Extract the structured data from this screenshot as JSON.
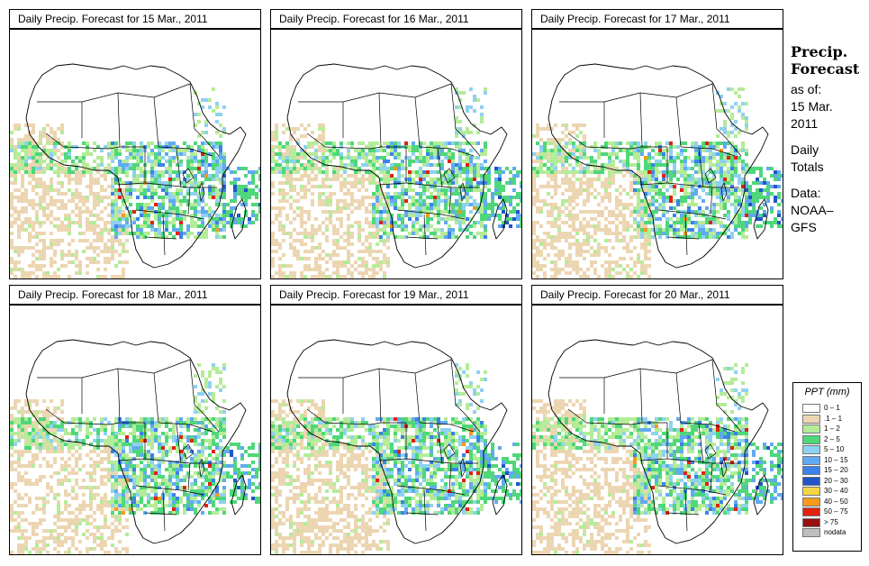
{
  "panels": [
    {
      "title": "Daily Precip. Forecast for  15 Mar., 2011",
      "seed": 11
    },
    {
      "title": "Daily Precip. Forecast for  16 Mar., 2011",
      "seed": 22
    },
    {
      "title": "Daily Precip. Forecast for  17 Mar., 2011",
      "seed": 33
    },
    {
      "title": "Daily Precip. Forecast for  18 Mar., 2011",
      "seed": 44
    },
    {
      "title": "Daily Precip. Forecast for  19 Mar., 2011",
      "seed": 55
    },
    {
      "title": "Daily Precip. Forecast for  20 Mar., 2011",
      "seed": 66
    }
  ],
  "info": {
    "heading_line1": "Precip.",
    "heading_line2": "Forecast",
    "asof_label": "as of:",
    "date_line1": "15 Mar.",
    "date_line2": "2011",
    "daily_line1": "Daily",
    "daily_line2": "Totals",
    "data_line1": "Data:",
    "data_line2": "NOAA–",
    "data_line3": "GFS"
  },
  "legend": {
    "title": "PPT (mm)",
    "items": [
      {
        "label": "0 – 1",
        "color": "#ffffff"
      },
      {
        "label": ".1 – 1",
        "color": "#ecd6b2"
      },
      {
        "label": "1 – 2",
        "color": "#b4ec98"
      },
      {
        "label": "2 – 5",
        "color": "#4fd77a"
      },
      {
        "label": "5 – 10",
        "color": "#8fd1f0"
      },
      {
        "label": "10 – 15",
        "color": "#61a9f0"
      },
      {
        "label": "15 – 20",
        "color": "#3b82ea"
      },
      {
        "label": "20 – 30",
        "color": "#2155c8"
      },
      {
        "label": "30 – 40",
        "color": "#f5d545"
      },
      {
        "label": "40 – 50",
        "color": "#f59a1a"
      },
      {
        "label": "50 – 75",
        "color": "#e0220e"
      },
      {
        "label": "> 75",
        "color": "#951010"
      },
      {
        "label": "nodata",
        "color": "#bfbfbf"
      }
    ]
  }
}
